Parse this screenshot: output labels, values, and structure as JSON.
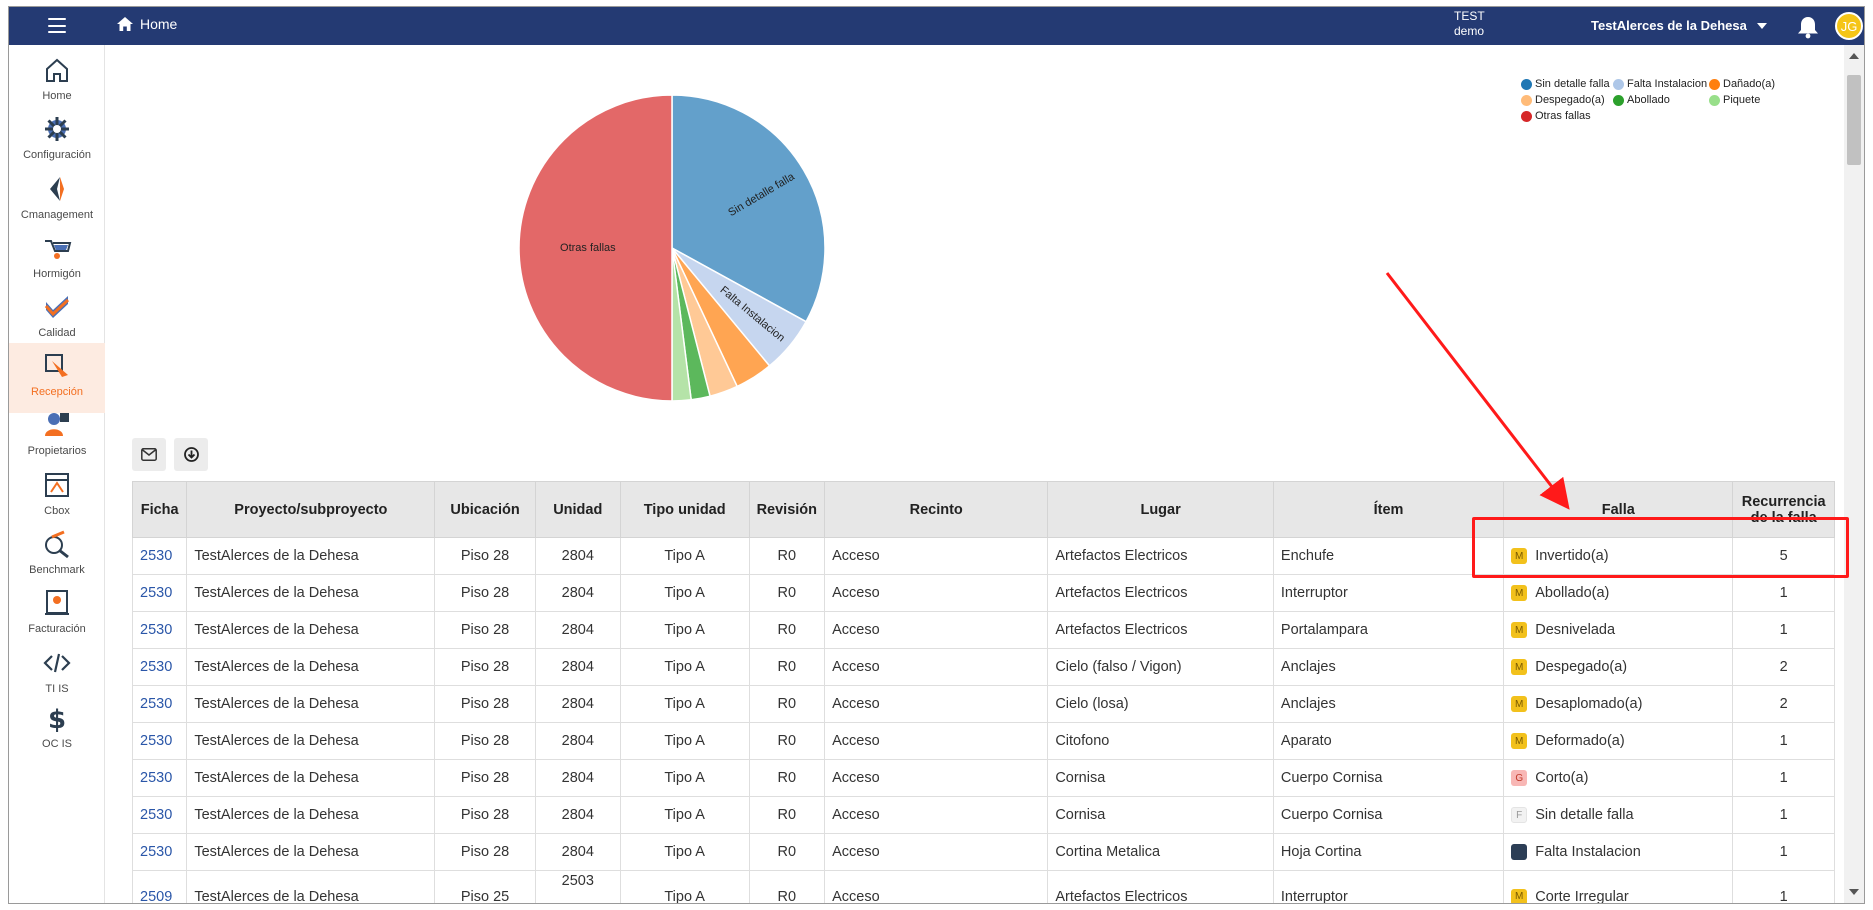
{
  "header": {
    "home_label": "Home",
    "env_line1": "TEST",
    "env_line2": "demo",
    "project_selector": "TestAlerces de la Dehesa",
    "avatar_initials": "JG"
  },
  "sidebar": {
    "items": [
      {
        "label": "Home",
        "icon": "home-icon"
      },
      {
        "label": "Configuración",
        "icon": "gear-icon"
      },
      {
        "label": "Cmanagement",
        "icon": "cmanagement-icon"
      },
      {
        "label": "Hormigón",
        "icon": "wheelbarrow-icon"
      },
      {
        "label": "Calidad",
        "icon": "quality-check-icon"
      },
      {
        "label": "Recepción",
        "icon": "reception-icon",
        "active": true
      },
      {
        "label": "Propietarios",
        "icon": "owners-icon"
      },
      {
        "label": "Cbox",
        "icon": "cbox-icon"
      },
      {
        "label": "Benchmark",
        "icon": "benchmark-icon"
      },
      {
        "label": "Facturación",
        "icon": "billing-icon"
      },
      {
        "label": "TI IS",
        "icon": "code-icon"
      },
      {
        "label": "OC IS",
        "icon": "dollar-icon"
      }
    ]
  },
  "chart_data": {
    "type": "pie",
    "slices": [
      {
        "label": "Sin detalle falla",
        "value": 33,
        "color": "#63a0cb",
        "legend_color": "#1f77b4"
      },
      {
        "label": "Falta Instalacion",
        "value": 6,
        "color": "#c6d6ef",
        "legend_color": "#aec7e8"
      },
      {
        "label": "Dañado(a)",
        "value": 4,
        "color": "#ffa552",
        "legend_color": "#ff7f0e"
      },
      {
        "label": "Despegado(a)",
        "value": 3,
        "color": "#ffc996",
        "legend_color": "#ffbb78"
      },
      {
        "label": "Abollado",
        "value": 2,
        "color": "#5cb85c",
        "legend_color": "#2ca02c"
      },
      {
        "label": "Piquete",
        "value": 2,
        "color": "#b5e3a8",
        "legend_color": "#98df8a"
      },
      {
        "label": "Otras fallas",
        "value": 50,
        "color": "#e36868",
        "legend_color": "#d62728"
      }
    ],
    "slice_labels_shown": [
      "Sin detalle falla",
      "Falta Instalacion",
      "Otras fallas"
    ],
    "legend_position": "top-right"
  },
  "toolbar": {
    "email_icon": "email-icon",
    "download_icon": "download-icon"
  },
  "table": {
    "columns": [
      "Ficha",
      "Proyecto/subproyecto",
      "Ubicación",
      "Unidad",
      "Tipo unidad",
      "Revisión",
      "Recinto",
      "Lugar",
      "Ítem",
      "Falla",
      "Recurrencia de la falla"
    ],
    "rows": [
      {
        "ficha": "2530",
        "proyecto": "TestAlerces de la Dehesa",
        "ubicacion": "Piso 28",
        "unidad": "2804",
        "tipo": "Tipo A",
        "revision": "R0",
        "recinto": "Acceso",
        "lugar": "Artefactos Electricos",
        "item": "Enchufe",
        "badge": "M",
        "falla": "Invertido(a)",
        "recurrencia": "5"
      },
      {
        "ficha": "2530",
        "proyecto": "TestAlerces de la Dehesa",
        "ubicacion": "Piso 28",
        "unidad": "2804",
        "tipo": "Tipo A",
        "revision": "R0",
        "recinto": "Acceso",
        "lugar": "Artefactos Electricos",
        "item": "Interruptor",
        "badge": "M",
        "falla": "Abollado(a)",
        "recurrencia": "1"
      },
      {
        "ficha": "2530",
        "proyecto": "TestAlerces de la Dehesa",
        "ubicacion": "Piso 28",
        "unidad": "2804",
        "tipo": "Tipo A",
        "revision": "R0",
        "recinto": "Acceso",
        "lugar": "Artefactos Electricos",
        "item": "Portalampara",
        "badge": "M",
        "falla": "Desnivelada",
        "recurrencia": "1"
      },
      {
        "ficha": "2530",
        "proyecto": "TestAlerces de la Dehesa",
        "ubicacion": "Piso 28",
        "unidad": "2804",
        "tipo": "Tipo A",
        "revision": "R0",
        "recinto": "Acceso",
        "lugar": "Cielo (falso / Vigon)",
        "item": "Anclajes",
        "badge": "M",
        "falla": "Despegado(a)",
        "recurrencia": "2"
      },
      {
        "ficha": "2530",
        "proyecto": "TestAlerces de la Dehesa",
        "ubicacion": "Piso 28",
        "unidad": "2804",
        "tipo": "Tipo A",
        "revision": "R0",
        "recinto": "Acceso",
        "lugar": "Cielo (losa)",
        "item": "Anclajes",
        "badge": "M",
        "falla": "Desaplomado(a)",
        "recurrencia": "2"
      },
      {
        "ficha": "2530",
        "proyecto": "TestAlerces de la Dehesa",
        "ubicacion": "Piso 28",
        "unidad": "2804",
        "tipo": "Tipo A",
        "revision": "R0",
        "recinto": "Acceso",
        "lugar": "Citofono",
        "item": "Aparato",
        "badge": "M",
        "falla": "Deformado(a)",
        "recurrencia": "1"
      },
      {
        "ficha": "2530",
        "proyecto": "TestAlerces de la Dehesa",
        "ubicacion": "Piso 28",
        "unidad": "2804",
        "tipo": "Tipo A",
        "revision": "R0",
        "recinto": "Acceso",
        "lugar": "Cornisa",
        "item": "Cuerpo Cornisa",
        "badge": "G",
        "falla": "Corto(a)",
        "recurrencia": "1"
      },
      {
        "ficha": "2530",
        "proyecto": "TestAlerces de la Dehesa",
        "ubicacion": "Piso 28",
        "unidad": "2804",
        "tipo": "Tipo A",
        "revision": "R0",
        "recinto": "Acceso",
        "lugar": "Cornisa",
        "item": "Cuerpo Cornisa",
        "badge": "F",
        "falla": "Sin detalle falla",
        "recurrencia": "1"
      },
      {
        "ficha": "2530",
        "proyecto": "TestAlerces de la Dehesa",
        "ubicacion": "Piso 28",
        "unidad": "2804",
        "tipo": "Tipo A",
        "revision": "R0",
        "recinto": "Acceso",
        "lugar": "Cortina Metalica",
        "item": "Hoja Cortina",
        "badge": "D",
        "falla": "Falta Instalacion",
        "recurrencia": "1"
      },
      {
        "ficha": "2509",
        "proyecto": "TestAlerces de la Dehesa",
        "ubicacion": "Piso 25",
        "unidad": "2503",
        "tipo": "Tipo A",
        "revision": "R0",
        "recinto": "Acceso",
        "lugar": "Artefactos Electricos",
        "item": "Interruptor",
        "badge": "M",
        "falla": "Corte Irregular",
        "recurrencia": "1"
      }
    ]
  },
  "colors": {
    "topbar": "#243a73",
    "accent": "#f36f21",
    "annotation": "#ff1a1a"
  }
}
